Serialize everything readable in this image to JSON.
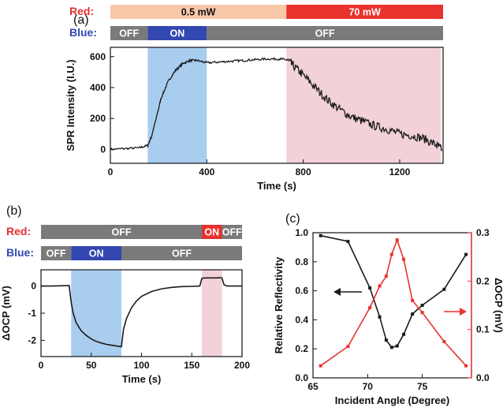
{
  "colors": {
    "red_low": "#f8c8a8",
    "red_high": "#e8322c",
    "blue_on": "#3347b0",
    "off_gray": "#7a7a7a",
    "shade_blue": "#a9cdef",
    "shade_pink": "#f2d1d8",
    "red_text": "#e03030",
    "blue_text": "#3347b0",
    "series_black": "#1a1a1a",
    "series_red": "#e8322c"
  },
  "chart_data": [
    {
      "panel": "(a)",
      "type": "line",
      "xlabel": "Time (s)",
      "ylabel": "SPR Intensity (I.U.)",
      "xlim": [
        0,
        1380
      ],
      "ylim": [
        -90,
        660
      ],
      "xticks": [
        0,
        400,
        800,
        1200
      ],
      "yticks": [
        0,
        200,
        400,
        600
      ],
      "shaded": [
        {
          "from": 155,
          "to": 400,
          "color": "blue"
        },
        {
          "from": 730,
          "to": 1370,
          "color": "pink"
        }
      ],
      "series": [
        {
          "values_key": "spr",
          "color": "black",
          "x": [
            0,
            60,
            120,
            155,
            170,
            190,
            210,
            240,
            270,
            300,
            330,
            360,
            400,
            450,
            500,
            550,
            600,
            650,
            700,
            730,
            760,
            800,
            850,
            900,
            950,
            1000,
            1050,
            1100,
            1150,
            1200,
            1250,
            1300,
            1350,
            1375
          ],
          "y": [
            0,
            5,
            10,
            25,
            80,
            200,
            330,
            440,
            510,
            555,
            575,
            575,
            560,
            565,
            570,
            575,
            580,
            585,
            585,
            580,
            540,
            480,
            400,
            320,
            260,
            210,
            180,
            150,
            130,
            100,
            90,
            70,
            30,
            0
          ]
        }
      ],
      "control_bars": {
        "red": {
          "label": "Red:",
          "segments": [
            {
              "from": 0,
              "to": 730,
              "label": "0.5 mW",
              "color": "red_low"
            },
            {
              "from": 730,
              "to": 1380,
              "label": "70 mW",
              "color": "red_high"
            }
          ]
        },
        "blue": {
          "label": "Blue:",
          "segments": [
            {
              "from": 0,
              "to": 155,
              "label": "OFF",
              "color": "off_gray"
            },
            {
              "from": 155,
              "to": 400,
              "label": "ON",
              "color": "blue_on"
            },
            {
              "from": 400,
              "to": 1380,
              "label": "OFF",
              "color": "off_gray"
            }
          ]
        }
      }
    },
    {
      "panel": "(b)",
      "type": "line",
      "xlabel": "Time (s)",
      "ylabel": "ΔOCP (mV)",
      "xlim": [
        0,
        200
      ],
      "ylim": [
        -2.6,
        0.6
      ],
      "xticks": [
        0,
        50,
        100,
        150,
        200
      ],
      "yticks": [
        -2,
        -1,
        0
      ],
      "shaded": [
        {
          "from": 30,
          "to": 80,
          "color": "blue"
        },
        {
          "from": 160,
          "to": 180,
          "color": "pink"
        }
      ],
      "series": [
        {
          "color": "black",
          "x": [
            0,
            10,
            20,
            28,
            30,
            32,
            35,
            40,
            45,
            50,
            55,
            60,
            65,
            70,
            75,
            80,
            82,
            85,
            90,
            95,
            100,
            110,
            120,
            130,
            140,
            150,
            158,
            160,
            162,
            165,
            170,
            175,
            178,
            180,
            182,
            185,
            190,
            200
          ],
          "y": [
            0,
            0,
            0.01,
            0.02,
            -0.6,
            -1.0,
            -1.35,
            -1.65,
            -1.82,
            -1.95,
            -2.04,
            -2.1,
            -2.15,
            -2.18,
            -2.21,
            -2.24,
            -1.6,
            -1.2,
            -0.8,
            -0.55,
            -0.38,
            -0.2,
            -0.1,
            -0.05,
            -0.02,
            -0.01,
            0,
            0.28,
            0.3,
            0.3,
            0.3,
            0.3,
            0.31,
            0.3,
            0.05,
            0,
            0,
            0
          ]
        }
      ],
      "control_bars": {
        "red": {
          "label": "Red:",
          "segments": [
            {
              "from": 0,
              "to": 160,
              "label": "OFF",
              "color": "off_gray"
            },
            {
              "from": 160,
              "to": 180,
              "label": "ON",
              "color": "red_high"
            },
            {
              "from": 180,
              "to": 200,
              "label": "OFF",
              "color": "off_gray"
            }
          ]
        },
        "blue": {
          "label": "Blue:",
          "segments": [
            {
              "from": 0,
              "to": 30,
              "label": "OFF",
              "color": "off_gray"
            },
            {
              "from": 30,
              "to": 80,
              "label": "ON",
              "color": "blue_on"
            },
            {
              "from": 80,
              "to": 200,
              "label": "OFF",
              "color": "off_gray"
            }
          ]
        }
      }
    },
    {
      "panel": "(c)",
      "type": "line",
      "xlabel": "Incident Angle (Degree)",
      "ylabel_left": "Relative Reflectivity",
      "ylabel_right": "ΔOCP (mV)",
      "xlim": [
        65,
        79.5
      ],
      "ylim_left": [
        0.0,
        1.0
      ],
      "ylim_right": [
        0.0,
        0.3
      ],
      "xticks": [
        65,
        70,
        75
      ],
      "yticks_left": [
        "0.0",
        "0.2",
        "0.4",
        "0.6",
        "0.8",
        "1.0"
      ],
      "yticks_right": [
        "0.0",
        "0.1",
        "0.2",
        "0.3"
      ],
      "series": [
        {
          "axis": "left",
          "color": "black",
          "x": [
            65.7,
            68.2,
            70.2,
            71.1,
            71.7,
            72.2,
            72.7,
            73.3,
            74.1,
            75.0,
            77.0,
            79.0
          ],
          "y": [
            0.98,
            0.94,
            0.62,
            0.42,
            0.26,
            0.21,
            0.22,
            0.3,
            0.44,
            0.5,
            0.61,
            0.85
          ]
        },
        {
          "axis": "right",
          "color": "red",
          "x": [
            65.7,
            68.2,
            70.2,
            71.1,
            71.7,
            72.2,
            72.7,
            73.3,
            74.1,
            75.0,
            77.0,
            79.0
          ],
          "y": [
            0.025,
            0.065,
            0.145,
            0.19,
            0.21,
            0.255,
            0.285,
            0.245,
            0.16,
            0.135,
            0.075,
            0.025
          ]
        }
      ]
    }
  ]
}
